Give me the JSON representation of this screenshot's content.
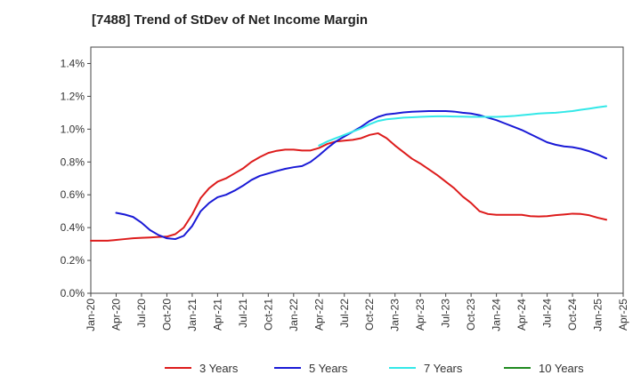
{
  "chart_data": {
    "type": "line",
    "title": "[7488]  Trend of StDev of Net Income Margin",
    "xlabel": "",
    "ylabel": "",
    "x_ticks": [
      "Jan-20",
      "Apr-20",
      "Jul-20",
      "Oct-20",
      "Jan-21",
      "Apr-21",
      "Jul-21",
      "Oct-21",
      "Jan-22",
      "Apr-22",
      "Jul-22",
      "Oct-22",
      "Jan-23",
      "Apr-23",
      "Jul-23",
      "Oct-23",
      "Jan-24",
      "Apr-24",
      "Jul-24",
      "Oct-24",
      "Jan-25",
      "Apr-25"
    ],
    "x_range": [
      "Jan-20",
      "Apr-25"
    ],
    "y_ticks": [
      "0.0%",
      "0.2%",
      "0.4%",
      "0.6%",
      "0.8%",
      "1.0%",
      "1.2%",
      "1.4%"
    ],
    "ylim": [
      0,
      1.5
    ],
    "grid": true,
    "legend_position": "bottom",
    "series": [
      {
        "name": "3 Years",
        "color": "#dd1c1c",
        "points": [
          [
            "Jan-20",
            0.32
          ],
          [
            "Feb-20",
            0.32
          ],
          [
            "Mar-20",
            0.32
          ],
          [
            "Apr-20",
            0.325
          ],
          [
            "May-20",
            0.33
          ],
          [
            "Jun-20",
            0.335
          ],
          [
            "Jul-20",
            0.338
          ],
          [
            "Aug-20",
            0.34
          ],
          [
            "Sep-20",
            0.343
          ],
          [
            "Oct-20",
            0.345
          ],
          [
            "Nov-20",
            0.36
          ],
          [
            "Dec-20",
            0.4
          ],
          [
            "Jan-21",
            0.48
          ],
          [
            "Feb-21",
            0.58
          ],
          [
            "Mar-21",
            0.64
          ],
          [
            "Apr-21",
            0.68
          ],
          [
            "May-21",
            0.7
          ],
          [
            "Jun-21",
            0.73
          ],
          [
            "Jul-21",
            0.76
          ],
          [
            "Aug-21",
            0.8
          ],
          [
            "Sep-21",
            0.83
          ],
          [
            "Oct-21",
            0.855
          ],
          [
            "Nov-21",
            0.868
          ],
          [
            "Dec-21",
            0.875
          ],
          [
            "Jan-22",
            0.875
          ],
          [
            "Feb-22",
            0.87
          ],
          [
            "Mar-22",
            0.87
          ],
          [
            "Apr-22",
            0.885
          ],
          [
            "May-22",
            0.91
          ],
          [
            "Jun-22",
            0.925
          ],
          [
            "Jul-22",
            0.93
          ],
          [
            "Aug-22",
            0.935
          ],
          [
            "Sep-22",
            0.945
          ],
          [
            "Oct-22",
            0.965
          ],
          [
            "Nov-22",
            0.975
          ],
          [
            "Dec-22",
            0.945
          ],
          [
            "Jan-23",
            0.9
          ],
          [
            "Feb-23",
            0.86
          ],
          [
            "Mar-23",
            0.82
          ],
          [
            "Apr-23",
            0.79
          ],
          [
            "May-23",
            0.755
          ],
          [
            "Jun-23",
            0.72
          ],
          [
            "Jul-23",
            0.68
          ],
          [
            "Aug-23",
            0.64
          ],
          [
            "Sep-23",
            0.59
          ],
          [
            "Oct-23",
            0.55
          ],
          [
            "Nov-23",
            0.5
          ],
          [
            "Dec-23",
            0.483
          ],
          [
            "Jan-24",
            0.478
          ],
          [
            "Feb-24",
            0.478
          ],
          [
            "Mar-24",
            0.478
          ],
          [
            "Apr-24",
            0.478
          ],
          [
            "May-24",
            0.47
          ],
          [
            "Jun-24",
            0.468
          ],
          [
            "Jul-24",
            0.47
          ],
          [
            "Aug-24",
            0.476
          ],
          [
            "Sep-24",
            0.48
          ],
          [
            "Oct-24",
            0.485
          ],
          [
            "Nov-24",
            0.483
          ],
          [
            "Dec-24",
            0.475
          ],
          [
            "Jan-25",
            0.46
          ],
          [
            "Feb-25",
            0.448
          ]
        ]
      },
      {
        "name": "5 Years",
        "color": "#1a1ad6",
        "points": [
          [
            "Jan-20",
            null
          ],
          [
            "Feb-20",
            null
          ],
          [
            "Mar-20",
            null
          ],
          [
            "Apr-20",
            0.49
          ],
          [
            "May-20",
            0.48
          ],
          [
            "Jun-20",
            0.465
          ],
          [
            "Jul-20",
            0.43
          ],
          [
            "Aug-20",
            0.385
          ],
          [
            "Sep-20",
            0.355
          ],
          [
            "Oct-20",
            0.335
          ],
          [
            "Nov-20",
            0.33
          ],
          [
            "Dec-20",
            0.35
          ],
          [
            "Jan-21",
            0.41
          ],
          [
            "Feb-21",
            0.5
          ],
          [
            "Mar-21",
            0.55
          ],
          [
            "Apr-21",
            0.585
          ],
          [
            "May-21",
            0.6
          ],
          [
            "Jun-21",
            0.625
          ],
          [
            "Jul-21",
            0.655
          ],
          [
            "Aug-21",
            0.69
          ],
          [
            "Sep-21",
            0.715
          ],
          [
            "Oct-21",
            0.73
          ],
          [
            "Nov-21",
            0.745
          ],
          [
            "Dec-21",
            0.758
          ],
          [
            "Jan-22",
            0.768
          ],
          [
            "Feb-22",
            0.775
          ],
          [
            "Mar-22",
            0.8
          ],
          [
            "Apr-22",
            0.84
          ],
          [
            "May-22",
            0.885
          ],
          [
            "Jun-22",
            0.925
          ],
          [
            "Jul-22",
            0.955
          ],
          [
            "Aug-22",
            0.985
          ],
          [
            "Sep-22",
            1.015
          ],
          [
            "Oct-22",
            1.05
          ],
          [
            "Nov-22",
            1.075
          ],
          [
            "Dec-22",
            1.09
          ],
          [
            "Jan-23",
            1.095
          ],
          [
            "Feb-23",
            1.102
          ],
          [
            "Mar-23",
            1.106
          ],
          [
            "Apr-23",
            1.108
          ],
          [
            "May-23",
            1.11
          ],
          [
            "Jun-23",
            1.11
          ],
          [
            "Jul-23",
            1.11
          ],
          [
            "Aug-23",
            1.107
          ],
          [
            "Sep-23",
            1.1
          ],
          [
            "Oct-23",
            1.095
          ],
          [
            "Nov-23",
            1.085
          ],
          [
            "Dec-23",
            1.07
          ],
          [
            "Jan-24",
            1.055
          ],
          [
            "Feb-24",
            1.035
          ],
          [
            "Mar-24",
            1.015
          ],
          [
            "Apr-24",
            0.995
          ],
          [
            "May-24",
            0.97
          ],
          [
            "Jun-24",
            0.945
          ],
          [
            "Jul-24",
            0.92
          ],
          [
            "Aug-24",
            0.905
          ],
          [
            "Sep-24",
            0.895
          ],
          [
            "Oct-24",
            0.89
          ],
          [
            "Nov-24",
            0.88
          ],
          [
            "Dec-24",
            0.865
          ],
          [
            "Jan-25",
            0.845
          ],
          [
            "Feb-25",
            0.822
          ]
        ]
      },
      {
        "name": "7 Years",
        "color": "#33e8e8",
        "points": [
          [
            "Apr-22",
            0.9
          ],
          [
            "May-22",
            0.925
          ],
          [
            "Jun-22",
            0.945
          ],
          [
            "Jul-22",
            0.965
          ],
          [
            "Aug-22",
            0.985
          ],
          [
            "Sep-22",
            1.005
          ],
          [
            "Oct-22",
            1.03
          ],
          [
            "Nov-22",
            1.05
          ],
          [
            "Dec-22",
            1.06
          ],
          [
            "Jan-23",
            1.065
          ],
          [
            "Feb-23",
            1.07
          ],
          [
            "Mar-23",
            1.072
          ],
          [
            "Apr-23",
            1.075
          ],
          [
            "May-23",
            1.077
          ],
          [
            "Jun-23",
            1.078
          ],
          [
            "Jul-23",
            1.078
          ],
          [
            "Aug-23",
            1.077
          ],
          [
            "Sep-23",
            1.076
          ],
          [
            "Oct-23",
            1.075
          ],
          [
            "Nov-23",
            1.075
          ],
          [
            "Dec-23",
            1.075
          ],
          [
            "Jan-24",
            1.075
          ],
          [
            "Feb-24",
            1.077
          ],
          [
            "Mar-24",
            1.08
          ],
          [
            "Apr-24",
            1.085
          ],
          [
            "May-24",
            1.09
          ],
          [
            "Jun-24",
            1.095
          ],
          [
            "Jul-24",
            1.098
          ],
          [
            "Aug-24",
            1.1
          ],
          [
            "Sep-24",
            1.105
          ],
          [
            "Oct-24",
            1.11
          ],
          [
            "Nov-24",
            1.118
          ],
          [
            "Dec-24",
            1.125
          ],
          [
            "Jan-25",
            1.133
          ],
          [
            "Feb-25",
            1.14
          ]
        ]
      },
      {
        "name": "10 Years",
        "color": "#1f8a1f",
        "points": []
      }
    ]
  }
}
